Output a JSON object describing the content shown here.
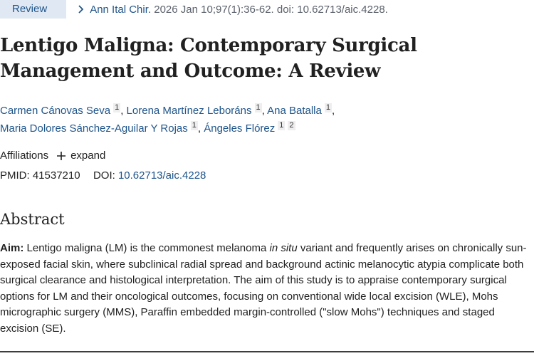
{
  "header": {
    "badge": "Review",
    "journal": "Ann Ital Chir.",
    "citation_detail": "2026 Jan 10;97(1):36-62. doi: 10.62713/aic.4228."
  },
  "article": {
    "title": "Lentigo Maligna: Contemporary Surgical Management and Outcome: A Review"
  },
  "authors": [
    {
      "name": "Carmen Cánovas Seva",
      "affils": "1",
      "sep": ", "
    },
    {
      "name": "Lorena Martínez Leboráns",
      "affils": "1",
      "sep": ", "
    },
    {
      "name": "Ana Batalla",
      "affils": "1",
      "sep": ","
    },
    {
      "name": "Maria Dolores Sánchez-Aguilar Y Rojas",
      "affils": "1",
      "sep": ", "
    },
    {
      "name": "Ángeles Flórez",
      "affils": "1",
      "affils2": "2",
      "sep": ""
    }
  ],
  "affiliations": {
    "label": "Affiliations",
    "expand_label": "expand"
  },
  "ids": {
    "pmid_label": "PMID:",
    "pmid": "41537210",
    "doi_label": "DOI:",
    "doi": "10.62713/aic.4228"
  },
  "abstract": {
    "heading": "Abstract",
    "aim_label": "Aim:",
    "text_part1": " Lentigo maligna (LM) is the commonest melanoma ",
    "italic": "in situ",
    "text_part2": " variant and frequently arises on chronically sun-exposed facial skin, where subclinical radial spread and background actinic melanocytic atypia complicate both surgical clearance and histological interpretation. The aim of this study is to appraise contemporary surgical options for LM and their oncological outcomes, focusing on conventional wide local excision (WLE), Mohs micrographic surgery (MMS), Paraffin embedded margin-controlled (\"slow Mohs\") techniques and staged excision (SE)."
  },
  "colors": {
    "link": "#20558a",
    "badge_bg": "#dfe8f3",
    "text": "#212121"
  },
  "icons": {
    "citation_chevron": "chevron-right-icon",
    "expand": "plus-icon"
  }
}
